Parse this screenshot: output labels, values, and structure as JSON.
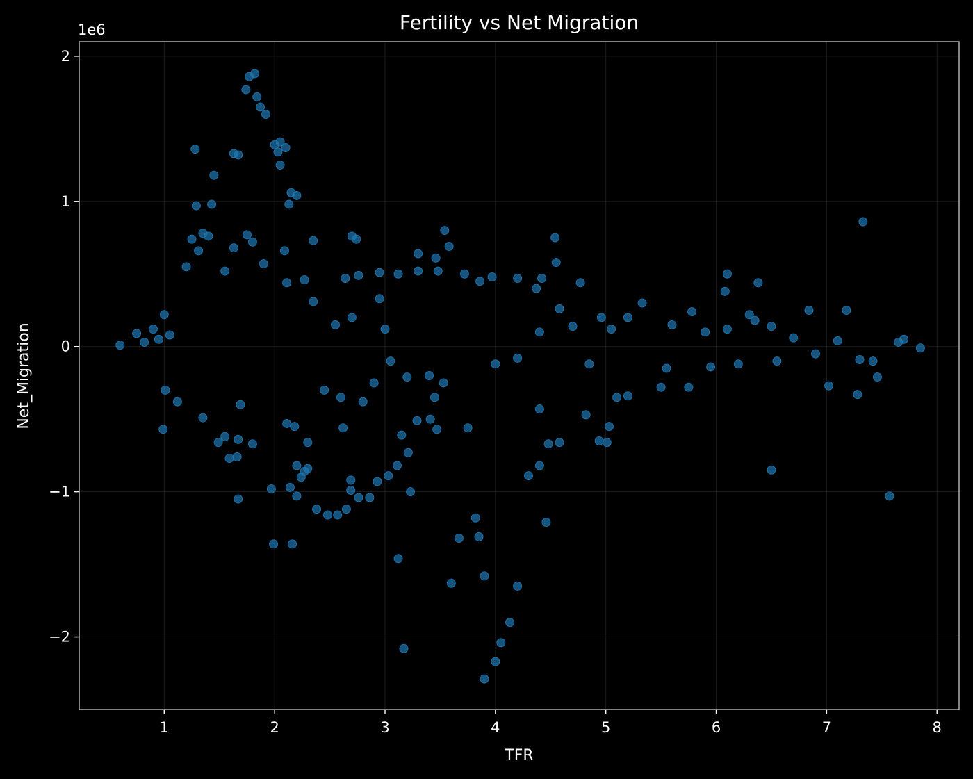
{
  "chart_data": {
    "type": "scatter",
    "title": "Fertility vs Net Migration",
    "xlabel": "TFR",
    "ylabel": "Net_Migration",
    "y_offset_label": "1e6",
    "xlim": [
      0.23,
      8.2
    ],
    "ylim": [
      -2.5,
      2.1
    ],
    "x_ticks": [
      1,
      2,
      3,
      4,
      5,
      6,
      7,
      8
    ],
    "x_tick_labels": [
      "1",
      "2",
      "3",
      "4",
      "5",
      "6",
      "7",
      "8"
    ],
    "y_ticks": [
      -2,
      -1,
      0,
      1,
      2
    ],
    "y_tick_labels": [
      "−2",
      "−1",
      "0",
      "1",
      "2"
    ],
    "grid": true,
    "colors": {
      "background": "#000000",
      "point": "#1f77b4",
      "text": "#ffffff"
    },
    "series": [
      {
        "values": [
          [
            1.28,
            1.36
          ],
          [
            1.45,
            1.18
          ],
          [
            1.63,
            1.33
          ],
          [
            1.67,
            1.32
          ],
          [
            1.74,
            1.77
          ],
          [
            1.77,
            1.86
          ],
          [
            1.82,
            1.88
          ],
          [
            1.84,
            1.72
          ],
          [
            1.87,
            1.65
          ],
          [
            1.92,
            1.6
          ],
          [
            2.0,
            1.39
          ],
          [
            2.03,
            1.34
          ],
          [
            2.05,
            1.41
          ],
          [
            2.1,
            1.37
          ],
          [
            2.05,
            1.25
          ],
          [
            2.15,
            1.06
          ],
          [
            2.2,
            1.04
          ],
          [
            2.13,
            0.98
          ],
          [
            1.29,
            0.97
          ],
          [
            1.43,
            0.98
          ],
          [
            1.35,
            0.78
          ],
          [
            1.4,
            0.76
          ],
          [
            1.25,
            0.74
          ],
          [
            1.75,
            0.77
          ],
          [
            1.8,
            0.72
          ],
          [
            1.63,
            0.68
          ],
          [
            1.31,
            0.66
          ],
          [
            2.09,
            0.66
          ],
          [
            2.35,
            0.73
          ],
          [
            2.7,
            0.76
          ],
          [
            2.74,
            0.74
          ],
          [
            3.3,
            0.64
          ],
          [
            3.54,
            0.8
          ],
          [
            3.58,
            0.69
          ],
          [
            3.46,
            0.61
          ],
          [
            4.54,
            0.75
          ],
          [
            4.55,
            0.58
          ],
          [
            7.33,
            0.86
          ],
          [
            1.9,
            0.57
          ],
          [
            2.27,
            0.46
          ],
          [
            2.64,
            0.47
          ],
          [
            2.76,
            0.49
          ],
          [
            2.95,
            0.51
          ],
          [
            3.12,
            0.5
          ],
          [
            3.3,
            0.52
          ],
          [
            3.48,
            0.52
          ],
          [
            3.72,
            0.5
          ],
          [
            3.86,
            0.45
          ],
          [
            3.97,
            0.48
          ],
          [
            4.2,
            0.47
          ],
          [
            4.42,
            0.47
          ],
          [
            4.37,
            0.4
          ],
          [
            4.77,
            0.44
          ],
          [
            6.1,
            0.5
          ],
          [
            6.38,
            0.44
          ],
          [
            6.08,
            0.38
          ],
          [
            2.11,
            0.44
          ],
          [
            1.2,
            0.55
          ],
          [
            1.55,
            0.52
          ],
          [
            2.35,
            0.31
          ],
          [
            2.95,
            0.33
          ],
          [
            4.58,
            0.26
          ],
          [
            5.33,
            0.3
          ],
          [
            5.78,
            0.24
          ],
          [
            6.84,
            0.25
          ],
          [
            7.18,
            0.25
          ],
          [
            0.6,
            0.01
          ],
          [
            0.75,
            0.09
          ],
          [
            0.82,
            0.03
          ],
          [
            0.9,
            0.12
          ],
          [
            1.0,
            0.22
          ],
          [
            0.95,
            0.05
          ],
          [
            1.05,
            0.08
          ],
          [
            4.96,
            0.2
          ],
          [
            5.2,
            0.2
          ],
          [
            6.3,
            0.22
          ],
          [
            6.5,
            0.14
          ],
          [
            1.01,
            -0.3
          ],
          [
            0.99,
            -0.57
          ],
          [
            1.12,
            -0.38
          ],
          [
            1.35,
            -0.49
          ],
          [
            1.49,
            -0.66
          ],
          [
            1.55,
            -0.62
          ],
          [
            1.59,
            -0.77
          ],
          [
            1.66,
            -0.76
          ],
          [
            1.67,
            -0.64
          ],
          [
            1.8,
            -0.67
          ],
          [
            1.69,
            -0.4
          ],
          [
            1.97,
            -0.98
          ],
          [
            1.67,
            -1.05
          ],
          [
            1.99,
            -1.36
          ],
          [
            2.16,
            -1.36
          ],
          [
            2.11,
            -0.53
          ],
          [
            2.18,
            -0.55
          ],
          [
            2.14,
            -0.97
          ],
          [
            2.2,
            -1.03
          ],
          [
            2.2,
            -0.82
          ],
          [
            2.27,
            -0.86
          ],
          [
            2.24,
            -0.9
          ],
          [
            2.3,
            -0.84
          ],
          [
            2.3,
            -0.66
          ],
          [
            2.38,
            -1.12
          ],
          [
            2.48,
            -1.16
          ],
          [
            2.57,
            -1.16
          ],
          [
            2.65,
            -1.12
          ],
          [
            2.69,
            -0.92
          ],
          [
            2.69,
            -0.99
          ],
          [
            2.76,
            -1.04
          ],
          [
            2.86,
            -1.04
          ],
          [
            2.93,
            -0.93
          ],
          [
            3.03,
            -0.89
          ],
          [
            3.11,
            -0.82
          ],
          [
            3.15,
            -0.61
          ],
          [
            3.21,
            -0.73
          ],
          [
            3.23,
            -1.0
          ],
          [
            3.12,
            -1.46
          ],
          [
            3.17,
            -2.08
          ],
          [
            3.29,
            -0.51
          ],
          [
            3.41,
            -0.5
          ],
          [
            3.47,
            -0.57
          ],
          [
            2.62,
            -0.56
          ],
          [
            3.6,
            -1.63
          ],
          [
            3.67,
            -1.32
          ],
          [
            3.75,
            -0.56
          ],
          [
            3.85,
            -1.31
          ],
          [
            3.82,
            -1.18
          ],
          [
            3.9,
            -1.58
          ],
          [
            4.0,
            -2.17
          ],
          [
            4.05,
            -2.04
          ],
          [
            3.9,
            -2.29
          ],
          [
            4.13,
            -1.9
          ],
          [
            4.2,
            -1.65
          ],
          [
            4.3,
            -0.89
          ],
          [
            4.4,
            -0.82
          ],
          [
            4.4,
            -0.43
          ],
          [
            4.46,
            -1.21
          ],
          [
            4.48,
            -0.67
          ],
          [
            4.58,
            -0.66
          ],
          [
            4.82,
            -0.47
          ],
          [
            4.94,
            -0.65
          ],
          [
            5.01,
            -0.66
          ],
          [
            5.03,
            -0.55
          ],
          [
            6.5,
            -0.85
          ],
          [
            7.57,
            -1.03
          ],
          [
            7.28,
            -0.33
          ],
          [
            7.02,
            -0.27
          ],
          [
            7.46,
            -0.21
          ],
          [
            5.1,
            -0.35
          ],
          [
            5.2,
            -0.34
          ],
          [
            5.5,
            -0.28
          ],
          [
            5.75,
            -0.28
          ],
          [
            3.05,
            -0.1
          ],
          [
            3.4,
            -0.2
          ],
          [
            3.53,
            -0.25
          ],
          [
            3.0,
            0.12
          ],
          [
            2.7,
            0.2
          ],
          [
            2.55,
            0.15
          ],
          [
            2.45,
            -0.3
          ],
          [
            2.6,
            -0.35
          ],
          [
            2.8,
            -0.38
          ],
          [
            2.9,
            -0.25
          ],
          [
            3.2,
            -0.21
          ],
          [
            3.45,
            -0.35
          ],
          [
            4.0,
            -0.12
          ],
          [
            4.2,
            -0.08
          ],
          [
            4.4,
            0.1
          ],
          [
            4.7,
            0.14
          ],
          [
            4.85,
            -0.12
          ],
          [
            5.05,
            0.12
          ],
          [
            5.55,
            -0.15
          ],
          [
            5.6,
            0.15
          ],
          [
            5.9,
            0.1
          ],
          [
            5.95,
            -0.14
          ],
          [
            6.1,
            0.12
          ],
          [
            6.2,
            -0.12
          ],
          [
            6.35,
            0.18
          ],
          [
            6.55,
            -0.1
          ],
          [
            6.7,
            0.06
          ],
          [
            6.9,
            -0.05
          ],
          [
            7.1,
            0.04
          ],
          [
            7.3,
            -0.09
          ],
          [
            7.42,
            -0.1
          ],
          [
            7.65,
            0.03
          ],
          [
            7.7,
            0.05
          ],
          [
            7.85,
            -0.01
          ]
        ]
      }
    ]
  }
}
